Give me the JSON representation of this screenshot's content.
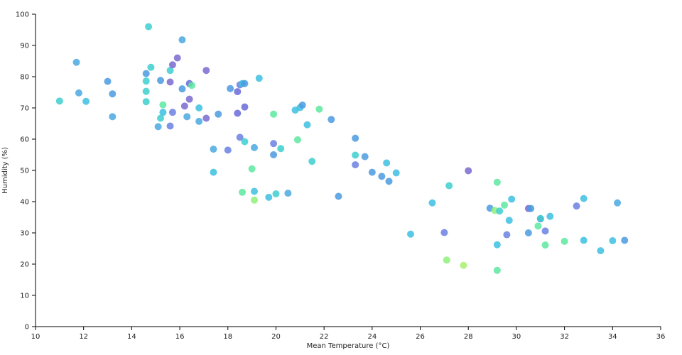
{
  "chart_data": {
    "type": "scatter",
    "xlabel": "Mean Temperature (°C)",
    "ylabel": "Humidity (%)",
    "xlim": [
      10,
      36
    ],
    "ylim": [
      0,
      100
    ],
    "xticks": [
      10,
      12,
      14,
      16,
      18,
      20,
      22,
      24,
      26,
      28,
      30,
      32,
      34,
      36
    ],
    "yticks": [
      0,
      10,
      20,
      30,
      40,
      50,
      60,
      70,
      80,
      90,
      100
    ],
    "grid": false,
    "points": [
      {
        "x": 11.0,
        "y": 72.2,
        "color": "#3dcfcf"
      },
      {
        "x": 11.7,
        "y": 84.6,
        "color": "#4aa9e0"
      },
      {
        "x": 11.8,
        "y": 74.8,
        "color": "#4aa9e0"
      },
      {
        "x": 12.1,
        "y": 72.1,
        "color": "#3dbfe0"
      },
      {
        "x": 13.0,
        "y": 78.5,
        "color": "#4a9ae0"
      },
      {
        "x": 13.2,
        "y": 74.5,
        "color": "#4a9ae0"
      },
      {
        "x": 13.2,
        "y": 67.2,
        "color": "#4aa9e0"
      },
      {
        "x": 14.6,
        "y": 81.0,
        "color": "#4a9ae0"
      },
      {
        "x": 14.6,
        "y": 75.3,
        "color": "#3dcfcf"
      },
      {
        "x": 14.6,
        "y": 78.6,
        "color": "#3dcfcf"
      },
      {
        "x": 14.6,
        "y": 72.0,
        "color": "#3dcfcf"
      },
      {
        "x": 14.7,
        "y": 96.0,
        "color": "#3dcfcf"
      },
      {
        "x": 14.8,
        "y": 83.0,
        "color": "#3dcfcf"
      },
      {
        "x": 15.1,
        "y": 64.0,
        "color": "#4aa9e0"
      },
      {
        "x": 15.2,
        "y": 78.8,
        "color": "#4a9ae0"
      },
      {
        "x": 15.2,
        "y": 66.7,
        "color": "#3dcfcf"
      },
      {
        "x": 15.3,
        "y": 68.6,
        "color": "#3dbfe0"
      },
      {
        "x": 15.3,
        "y": 71.0,
        "color": "#5de8a0"
      },
      {
        "x": 15.6,
        "y": 82.0,
        "color": "#3dcfcf"
      },
      {
        "x": 15.6,
        "y": 78.3,
        "color": "#7a6ad0"
      },
      {
        "x": 15.6,
        "y": 64.2,
        "color": "#6a80e0"
      },
      {
        "x": 15.7,
        "y": 83.8,
        "color": "#7a6ad0"
      },
      {
        "x": 15.7,
        "y": 68.6,
        "color": "#6a80e0"
      },
      {
        "x": 15.9,
        "y": 86.0,
        "color": "#7a6ad0"
      },
      {
        "x": 16.1,
        "y": 91.8,
        "color": "#4aa9e0"
      },
      {
        "x": 16.1,
        "y": 76.1,
        "color": "#4a9ae0"
      },
      {
        "x": 16.2,
        "y": 70.6,
        "color": "#7a6ad0"
      },
      {
        "x": 16.3,
        "y": 67.2,
        "color": "#4aa9e0"
      },
      {
        "x": 16.4,
        "y": 77.8,
        "color": "#6a6ad8"
      },
      {
        "x": 16.4,
        "y": 72.8,
        "color": "#7a6ad0"
      },
      {
        "x": 16.5,
        "y": 77.2,
        "color": "#5de8a0"
      },
      {
        "x": 16.8,
        "y": 70.0,
        "color": "#3dbfe0"
      },
      {
        "x": 16.8,
        "y": 65.7,
        "color": "#4aa9e0"
      },
      {
        "x": 17.1,
        "y": 82.0,
        "color": "#7a6ad0"
      },
      {
        "x": 17.1,
        "y": 66.7,
        "color": "#7a6ad0"
      },
      {
        "x": 17.4,
        "y": 56.8,
        "color": "#4aa9e0"
      },
      {
        "x": 17.4,
        "y": 49.4,
        "color": "#3dbfe0"
      },
      {
        "x": 17.6,
        "y": 68.0,
        "color": "#4a9ae0"
      },
      {
        "x": 18.0,
        "y": 56.5,
        "color": "#6a80e0"
      },
      {
        "x": 18.1,
        "y": 76.2,
        "color": "#4a9ae0"
      },
      {
        "x": 18.4,
        "y": 68.3,
        "color": "#6a6ad8"
      },
      {
        "x": 18.4,
        "y": 75.2,
        "color": "#6a6ad8"
      },
      {
        "x": 18.5,
        "y": 77.4,
        "color": "#6a80e0"
      },
      {
        "x": 18.5,
        "y": 60.6,
        "color": "#6a80e0"
      },
      {
        "x": 18.6,
        "y": 77.8,
        "color": "#3dbfe0"
      },
      {
        "x": 18.6,
        "y": 43.0,
        "color": "#5de8a0"
      },
      {
        "x": 18.7,
        "y": 77.8,
        "color": "#4a9ae0"
      },
      {
        "x": 18.7,
        "y": 70.3,
        "color": "#6a6ad8"
      },
      {
        "x": 18.7,
        "y": 59.2,
        "color": "#3dcfcf"
      },
      {
        "x": 19.0,
        "y": 50.5,
        "color": "#5de8a0"
      },
      {
        "x": 19.1,
        "y": 57.3,
        "color": "#4aa9e0"
      },
      {
        "x": 19.1,
        "y": 43.3,
        "color": "#3dbfe0"
      },
      {
        "x": 19.1,
        "y": 40.5,
        "color": "#8ef07a"
      },
      {
        "x": 19.3,
        "y": 79.5,
        "color": "#3dbfe0"
      },
      {
        "x": 19.7,
        "y": 41.4,
        "color": "#3dbfe0"
      },
      {
        "x": 19.9,
        "y": 58.6,
        "color": "#6a80e0"
      },
      {
        "x": 19.9,
        "y": 55.0,
        "color": "#4a9ae0"
      },
      {
        "x": 19.9,
        "y": 68.0,
        "color": "#5de8a0"
      },
      {
        "x": 20.0,
        "y": 42.5,
        "color": "#3dcfcf"
      },
      {
        "x": 20.2,
        "y": 57.0,
        "color": "#3dcfcf"
      },
      {
        "x": 20.5,
        "y": 42.7,
        "color": "#4aa9e0"
      },
      {
        "x": 20.8,
        "y": 69.3,
        "color": "#3dbfe0"
      },
      {
        "x": 20.9,
        "y": 59.8,
        "color": "#5de8a0"
      },
      {
        "x": 21.0,
        "y": 70.1,
        "color": "#3dbfe0"
      },
      {
        "x": 21.1,
        "y": 70.9,
        "color": "#4a9ae0"
      },
      {
        "x": 21.3,
        "y": 64.6,
        "color": "#3dbfe0"
      },
      {
        "x": 21.5,
        "y": 52.9,
        "color": "#3dcfcf"
      },
      {
        "x": 21.8,
        "y": 69.6,
        "color": "#5de8a0"
      },
      {
        "x": 22.3,
        "y": 66.3,
        "color": "#4a9ae0"
      },
      {
        "x": 22.6,
        "y": 41.7,
        "color": "#4a9ae0"
      },
      {
        "x": 23.3,
        "y": 60.3,
        "color": "#4a9ae0"
      },
      {
        "x": 23.3,
        "y": 54.9,
        "color": "#3dcfcf"
      },
      {
        "x": 23.3,
        "y": 51.8,
        "color": "#6a80e0"
      },
      {
        "x": 23.7,
        "y": 54.4,
        "color": "#4a9ae0"
      },
      {
        "x": 24.0,
        "y": 49.4,
        "color": "#4a9ae0"
      },
      {
        "x": 24.4,
        "y": 48.1,
        "color": "#4a9ae0"
      },
      {
        "x": 24.6,
        "y": 52.4,
        "color": "#3dbfe0"
      },
      {
        "x": 24.7,
        "y": 46.5,
        "color": "#4a9ae0"
      },
      {
        "x": 25.0,
        "y": 49.2,
        "color": "#3dbfe0"
      },
      {
        "x": 25.6,
        "y": 29.6,
        "color": "#3dbfe0"
      },
      {
        "x": 26.5,
        "y": 39.6,
        "color": "#3dbfe0"
      },
      {
        "x": 27.0,
        "y": 30.1,
        "color": "#6a80e0"
      },
      {
        "x": 27.1,
        "y": 21.3,
        "color": "#8ef07a"
      },
      {
        "x": 27.2,
        "y": 45.1,
        "color": "#3dcfcf"
      },
      {
        "x": 27.8,
        "y": 19.6,
        "color": "#a8f070"
      },
      {
        "x": 28.0,
        "y": 49.9,
        "color": "#7a6ad0"
      },
      {
        "x": 28.9,
        "y": 37.9,
        "color": "#4a9ae0"
      },
      {
        "x": 29.1,
        "y": 37.2,
        "color": "#8ef07a"
      },
      {
        "x": 29.2,
        "y": 46.2,
        "color": "#5de8a0"
      },
      {
        "x": 29.2,
        "y": 18.0,
        "color": "#5de8a0"
      },
      {
        "x": 29.2,
        "y": 26.2,
        "color": "#3dbfe0"
      },
      {
        "x": 29.3,
        "y": 37.0,
        "color": "#3dcfcf"
      },
      {
        "x": 29.5,
        "y": 38.9,
        "color": "#5de8a0"
      },
      {
        "x": 29.6,
        "y": 29.4,
        "color": "#6a80e0"
      },
      {
        "x": 29.7,
        "y": 34.0,
        "color": "#3dbfe0"
      },
      {
        "x": 29.8,
        "y": 40.8,
        "color": "#3dbfe0"
      },
      {
        "x": 30.5,
        "y": 37.8,
        "color": "#7a6ad0"
      },
      {
        "x": 30.6,
        "y": 37.8,
        "color": "#4a9ae0"
      },
      {
        "x": 30.5,
        "y": 30.0,
        "color": "#4a9ae0"
      },
      {
        "x": 30.9,
        "y": 32.2,
        "color": "#5de8a0"
      },
      {
        "x": 31.0,
        "y": 34.5,
        "color": "#6a80e0"
      },
      {
        "x": 31.0,
        "y": 34.6,
        "color": "#3dcfcf"
      },
      {
        "x": 31.2,
        "y": 30.6,
        "color": "#6a80e0"
      },
      {
        "x": 31.2,
        "y": 26.1,
        "color": "#5de8a0"
      },
      {
        "x": 31.4,
        "y": 35.3,
        "color": "#3dbfe0"
      },
      {
        "x": 32.0,
        "y": 27.3,
        "color": "#5de8a0"
      },
      {
        "x": 32.5,
        "y": 38.6,
        "color": "#6a80e0"
      },
      {
        "x": 32.8,
        "y": 41.0,
        "color": "#3dbfe0"
      },
      {
        "x": 32.8,
        "y": 27.6,
        "color": "#3dbfe0"
      },
      {
        "x": 33.5,
        "y": 24.3,
        "color": "#3dbfe0"
      },
      {
        "x": 34.0,
        "y": 27.5,
        "color": "#3dbfe0"
      },
      {
        "x": 34.2,
        "y": 39.6,
        "color": "#4aa9e0"
      },
      {
        "x": 34.5,
        "y": 27.6,
        "color": "#4a9ae0"
      }
    ]
  }
}
